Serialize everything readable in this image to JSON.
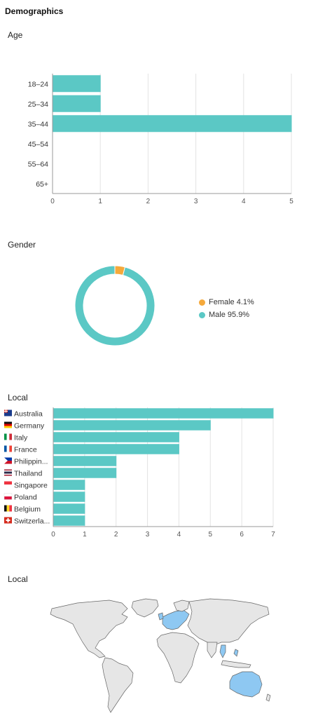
{
  "page": {
    "title": "Demographics"
  },
  "colors": {
    "bar": "#5bc8c5",
    "female": "#f5a93b",
    "male": "#5bc8c5",
    "grid": "#e3e3e3",
    "axis": "#9a9a9a",
    "land": "#e6e6e6",
    "land_highlight": "#8ec8f2",
    "border": "#666666"
  },
  "sections": {
    "age": {
      "title": "Age"
    },
    "gender": {
      "title": "Gender"
    },
    "local_bar": {
      "title": "Local"
    },
    "local_map": {
      "title": "Local"
    }
  },
  "chart_data": [
    {
      "id": "age",
      "type": "bar",
      "orientation": "horizontal",
      "categories": [
        "18–24",
        "25–34",
        "35–44",
        "45–54",
        "55–64",
        "65+"
      ],
      "values": [
        1,
        1,
        5,
        0,
        0,
        0
      ],
      "xlim": [
        0,
        5
      ],
      "xticks": [
        0,
        1,
        2,
        3,
        4,
        5
      ],
      "grid": true
    },
    {
      "id": "gender",
      "type": "pie",
      "donut": true,
      "slices": [
        {
          "label": "Female 4.1%",
          "value": 4.1,
          "color": "#f5a93b"
        },
        {
          "label": "Male 95.9%",
          "value": 95.9,
          "color": "#5bc8c5"
        }
      ],
      "legend_position": "right"
    },
    {
      "id": "local",
      "type": "bar",
      "orientation": "horizontal",
      "categories": [
        "Australia",
        "Germany",
        "Italy",
        "France",
        "Philippin...",
        "Thailand",
        "Singapore",
        "Poland",
        "Belgium",
        "Switzerla..."
      ],
      "flags": [
        "australia-flag",
        "germany-flag",
        "italy-flag",
        "france-flag",
        "philippines-flag",
        "thailand-flag",
        "singapore-flag",
        "poland-flag",
        "belgium-flag",
        "switzerland-flag"
      ],
      "values": [
        7,
        5,
        4,
        4,
        2,
        2,
        1,
        1,
        1,
        1
      ],
      "xlim": [
        0,
        7
      ],
      "xticks": [
        0,
        1,
        2,
        3,
        4,
        5,
        6,
        7
      ],
      "grid": true
    }
  ],
  "map": {
    "highlighted_regions": [
      "Europe",
      "Thailand",
      "Philippines",
      "Singapore",
      "Australia"
    ]
  }
}
